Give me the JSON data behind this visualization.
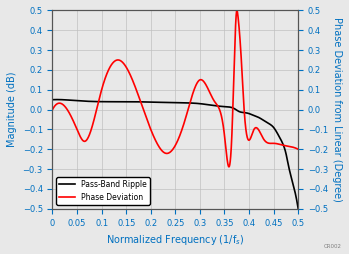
{
  "title": "",
  "xlabel": "Normalized Frequency (1/fₛ)",
  "ylabel_left": "Magnitude (dB)",
  "ylabel_right": "Phase Deviation from Linear (Degree)",
  "xlim": [
    0,
    0.5
  ],
  "ylim": [
    -0.5,
    0.5
  ],
  "xticks": [
    0,
    0.05,
    0.1,
    0.15,
    0.2,
    0.25,
    0.3,
    0.35,
    0.4,
    0.45,
    0.5
  ],
  "yticks": [
    -0.5,
    -0.4,
    -0.3,
    -0.2,
    -0.1,
    0.0,
    0.1,
    0.2,
    0.3,
    0.4,
    0.5
  ],
  "legend_labels": [
    "Pass-Band Ripple",
    "Phase Deviation"
  ],
  "legend_colors": [
    "black",
    "red"
  ],
  "grid_color": "#c0c0c0",
  "axis_label_color": "#0070C0",
  "tick_label_color": "#0070C0",
  "watermark": "CR002",
  "background_color": "#e8e8e8"
}
